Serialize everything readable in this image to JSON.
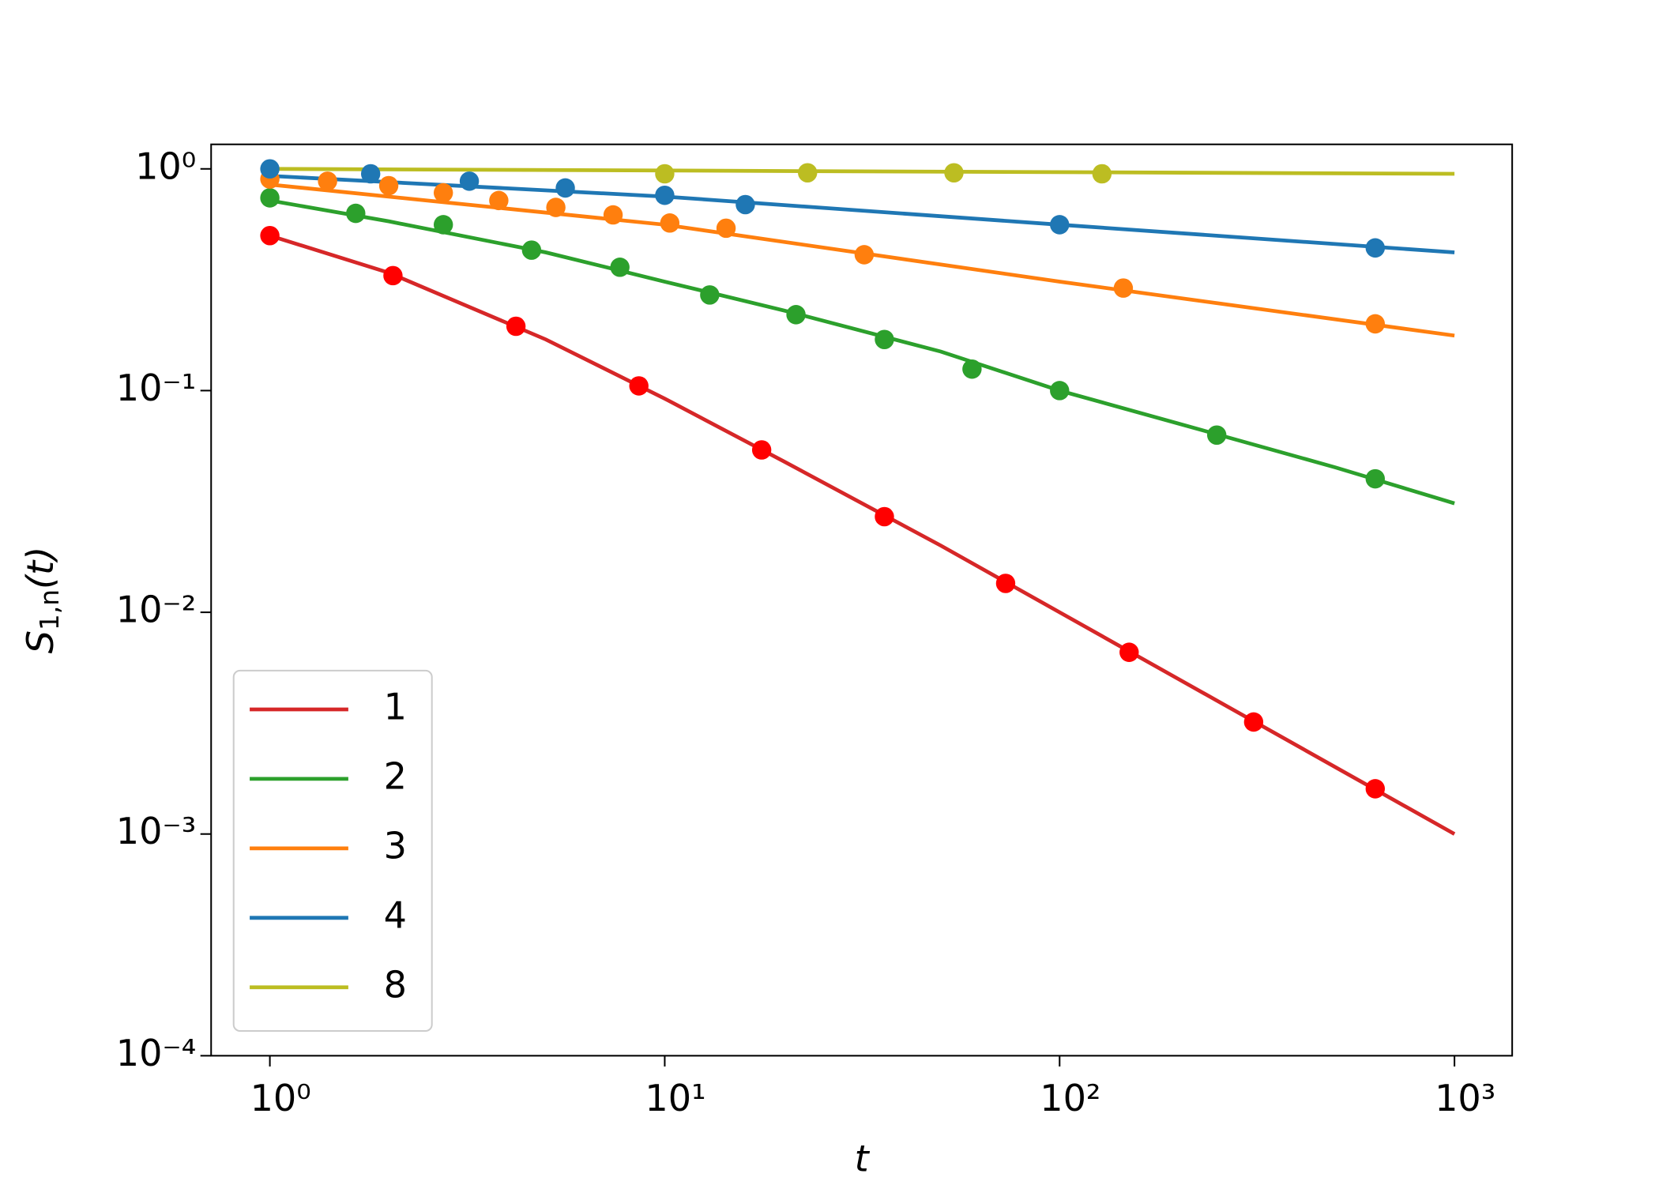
{
  "chart_data": {
    "type": "line",
    "x_label": "t",
    "y_label": {
      "main": "S",
      "sub": "1,n",
      "tail": "(t)"
    },
    "log_x": true,
    "log_y": true,
    "xlim": [
      0.71,
      1400
    ],
    "ylim": [
      0.0001,
      1.29
    ],
    "xticks": [
      {
        "value": 1,
        "label": "10⁰"
      },
      {
        "value": 10,
        "label": "10¹"
      },
      {
        "value": 100,
        "label": "10²"
      },
      {
        "value": 1000,
        "label": "10³"
      }
    ],
    "yticks": [
      {
        "value": 0.0001,
        "label": "10⁻⁴"
      },
      {
        "value": 0.001,
        "label": "10⁻³"
      },
      {
        "value": 0.01,
        "label": "10⁻²"
      },
      {
        "value": 0.1,
        "label": "10⁻¹"
      },
      {
        "value": 1,
        "label": "10⁰"
      }
    ],
    "legend": "lower left",
    "series": [
      {
        "name": "1",
        "color": "#d62728",
        "x": [
          1,
          2,
          5,
          10,
          20,
          50,
          100,
          200,
          500,
          1000
        ],
        "values": [
          0.5,
          0.34,
          0.17,
          0.092,
          0.048,
          0.02,
          0.01,
          0.005,
          0.002,
          0.001
        ]
      },
      {
        "name": "2",
        "color": "#2ca02c",
        "x": [
          1,
          2,
          5,
          10,
          20,
          50,
          100,
          200,
          500,
          1000
        ],
        "values": [
          0.72,
          0.58,
          0.42,
          0.31,
          0.23,
          0.15,
          0.1,
          0.071,
          0.045,
          0.031
        ]
      },
      {
        "name": "3",
        "color": "#ff7f0e",
        "x": [
          1,
          10,
          100,
          1000
        ],
        "values": [
          0.85,
          0.56,
          0.31,
          0.177
        ]
      },
      {
        "name": "4",
        "color": "#1f77b4",
        "x": [
          1,
          10,
          100,
          1000
        ],
        "values": [
          0.93,
          0.75,
          0.56,
          0.42
        ]
      },
      {
        "name": "8",
        "color": "#bcbd22",
        "x": [
          1,
          1000
        ],
        "values": [
          1.0,
          0.95
        ]
      }
    ],
    "scatter": [
      {
        "color": "#ff0000",
        "x": [
          1,
          2.05,
          4.2,
          8.6,
          17.6,
          36,
          73,
          150,
          310,
          630
        ],
        "values": [
          0.5,
          0.33,
          0.195,
          0.105,
          0.054,
          0.027,
          0.0135,
          0.0066,
          0.0032,
          0.0016
        ]
      },
      {
        "color": "#2ca02c",
        "x": [
          1,
          1.65,
          2.75,
          4.6,
          7.7,
          13,
          21.5,
          36,
          60,
          100,
          250,
          630
        ],
        "values": [
          0.74,
          0.63,
          0.56,
          0.43,
          0.36,
          0.27,
          0.22,
          0.17,
          0.125,
          0.1,
          0.063,
          0.04
        ]
      },
      {
        "color": "#ff7f0e",
        "x": [
          1,
          1.4,
          2,
          2.75,
          3.8,
          5.3,
          7.4,
          10.3,
          14.3,
          32,
          145,
          630
        ],
        "values": [
          0.9,
          0.88,
          0.84,
          0.78,
          0.72,
          0.67,
          0.62,
          0.57,
          0.54,
          0.41,
          0.29,
          0.2
        ]
      },
      {
        "color": "#1f77b4",
        "x": [
          1,
          1.8,
          3.2,
          5.6,
          10,
          16,
          100,
          630
        ],
        "values": [
          1.0,
          0.95,
          0.88,
          0.82,
          0.76,
          0.69,
          0.56,
          0.44
        ]
      },
      {
        "color": "#bcbd22",
        "x": [
          10,
          23,
          54,
          128
        ],
        "values": [
          0.95,
          0.96,
          0.96,
          0.95
        ]
      }
    ]
  }
}
